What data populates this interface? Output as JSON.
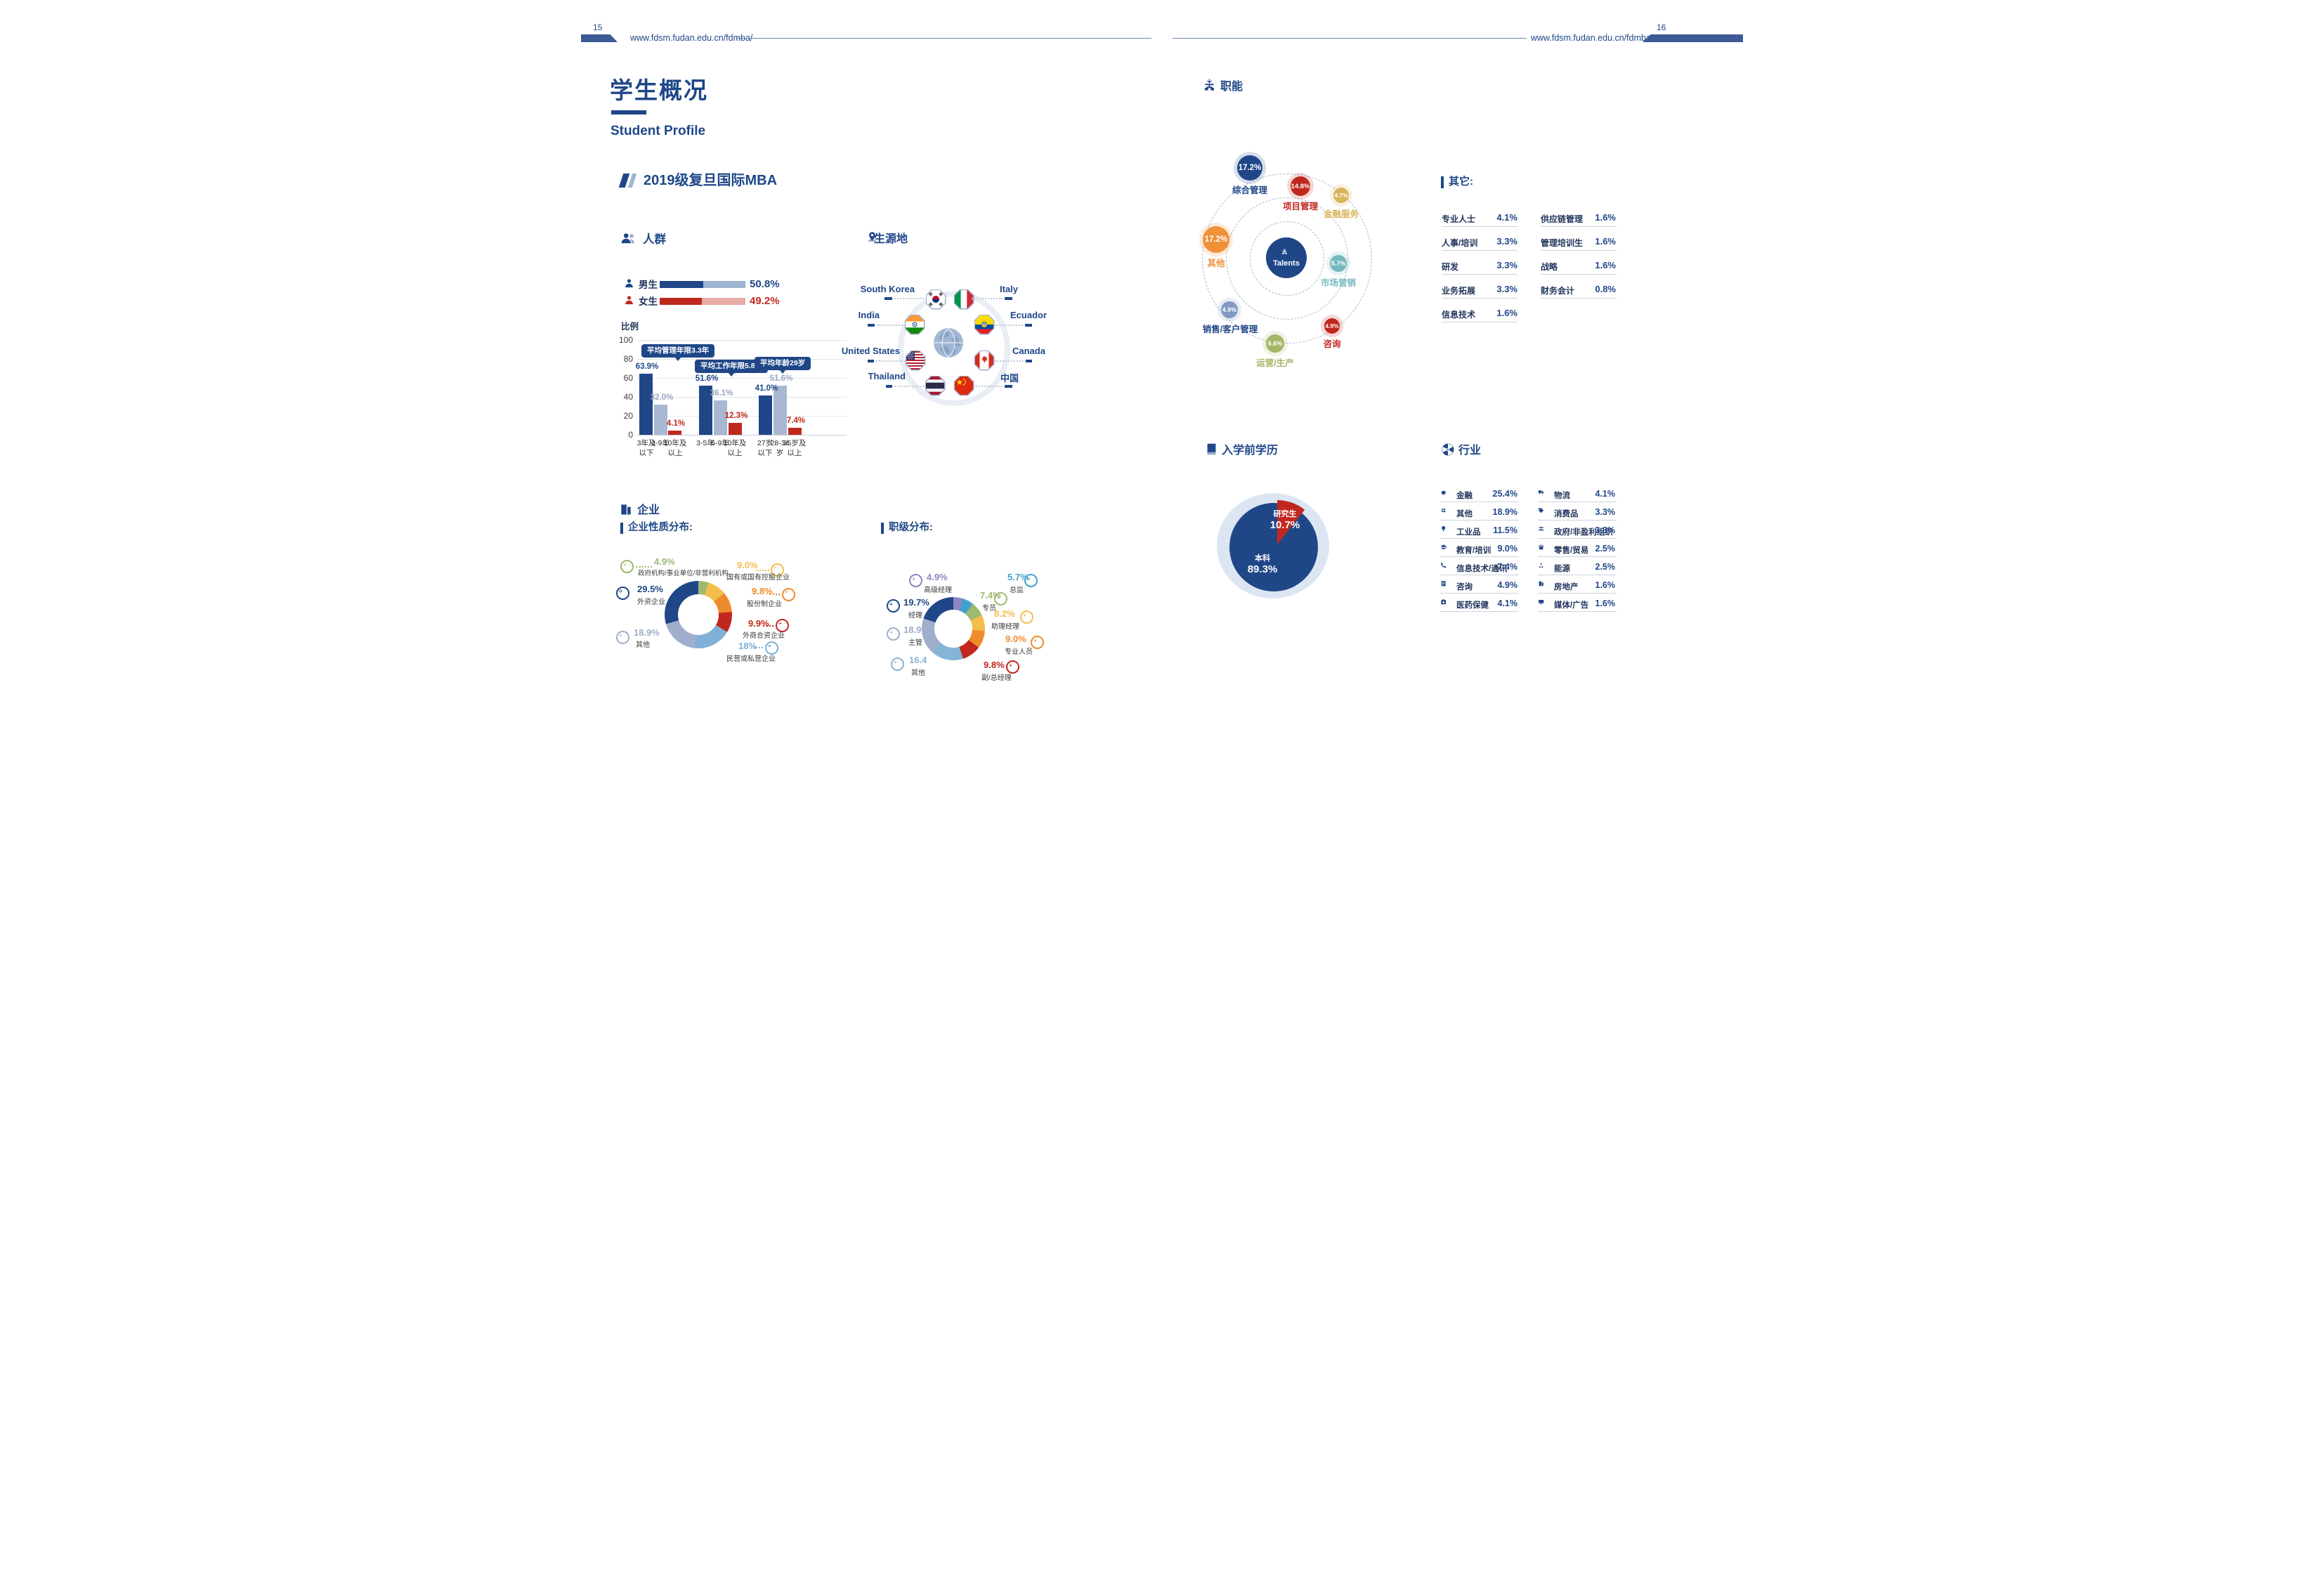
{
  "meta": {
    "left_page": "15",
    "right_page": "16",
    "url": "www.fdsm.fudan.edu.cn/fdmba/"
  },
  "palette": {
    "navy": "#1F4788",
    "red": "#C0281E",
    "gray_blue": "#9FAECB",
    "light_blue": "#7FB1D8"
  },
  "left_page": {
    "title": "学生概况",
    "subtitle": "Student Profile",
    "class_heading": "2019级复旦国际MBA",
    "people": {
      "title": "人群",
      "gender": [
        {
          "label": "男生",
          "display": "50.8%",
          "pct": 50.8,
          "color": "#1F4788",
          "track": "#9FB3D4"
        },
        {
          "label": "女生",
          "display": "49.2%",
          "pct": 49.2,
          "color": "#C0281E",
          "track": "#E8ACA7"
        }
      ],
      "axis_label": "比例",
      "ticks": [
        "100",
        "80",
        "60",
        "40",
        "20",
        "0"
      ],
      "groups": [
        {
          "annotation": "平均管理年限3.3年",
          "bars": [
            {
              "label": "3年及\n以下",
              "pct": 63.9,
              "display": "63.9%",
              "color": "#1F4788",
              "value_color": "#1F4788"
            },
            {
              "label": "4-9年",
              "pct": 32.0,
              "display": "32.0%",
              "color": "#A9B8D2",
              "value_color": "#9AA8C2"
            },
            {
              "label": "10年及\n以上",
              "pct": 4.1,
              "display": "4.1%",
              "color": "#C0281E",
              "value_color": "#C0281E"
            }
          ]
        },
        {
          "annotation": "平均工作年限5.8年",
          "bars": [
            {
              "label": "3-5年",
              "pct": 51.6,
              "display": "51.6%",
              "color": "#1F4788",
              "value_color": "#1F4788"
            },
            {
              "label": "6-9年",
              "pct": 36.1,
              "display": "36.1%",
              "color": "#A9B8D2",
              "value_color": "#9AA8C2"
            },
            {
              "label": "10年及\n以上",
              "pct": 12.3,
              "display": "12.3%",
              "color": "#C0281E",
              "value_color": "#C0281E"
            }
          ]
        },
        {
          "annotation": "平均年龄29岁",
          "bars": [
            {
              "label": "27岁\n以下",
              "pct": 41.0,
              "display": "41.0%",
              "color": "#1F4788",
              "value_color": "#1F4788"
            },
            {
              "label": "28-34\n岁",
              "pct": 51.6,
              "display": "51.6%",
              "color": "#A9B8D2",
              "value_color": "#9AA8C2"
            },
            {
              "label": "35岁及\n以上",
              "pct": 7.4,
              "display": "7.4%",
              "color": "#C0281E",
              "value_color": "#C0281E"
            }
          ]
        }
      ]
    },
    "origin": {
      "title": "生源地",
      "countries": [
        {
          "name": "South Korea"
        },
        {
          "name": "Italy"
        },
        {
          "name": "India"
        },
        {
          "name": "Ecuador"
        },
        {
          "name": "United States"
        },
        {
          "name": "Canada"
        },
        {
          "name": "Thailand"
        },
        {
          "name": "中国"
        }
      ]
    },
    "company": {
      "title": "企业",
      "nature": {
        "heading": "企业性质分布:",
        "slices": [
          {
            "pct": 4.9,
            "color": "#9CBA70"
          },
          {
            "pct": 9.0,
            "color": "#F3BE4B"
          },
          {
            "pct": 9.8,
            "color": "#EE8B2C"
          },
          {
            "pct": 9.9,
            "color": "#C0281E"
          },
          {
            "pct": 18.0,
            "color": "#7FB1D8"
          },
          {
            "pct": 18.9,
            "color": "#9FAECB"
          },
          {
            "pct": 29.5,
            "color": "#1F4788"
          }
        ],
        "labels": [
          {
            "value": "4.9%",
            "name": "政府机构/事业单位/非营利机构",
            "color": "#9CBA70"
          },
          {
            "value": "9.0%",
            "name": "国有或国有控股企业",
            "color": "#F3BE4B"
          },
          {
            "value": "9.8%",
            "name": "股份制企业",
            "color": "#EE8B2C"
          },
          {
            "value": "9.9%",
            "name": "外商合资企业",
            "color": "#C0281E"
          },
          {
            "value": "18%",
            "name": "民营或私营企业",
            "color": "#7FB1D8"
          },
          {
            "value": "18.9%",
            "name": "其他",
            "color": "#9FAECB"
          },
          {
            "value": "29.5%",
            "name": "外资企业",
            "color": "#1F4788"
          }
        ]
      },
      "rank": {
        "heading": "职级分布:",
        "slices": [
          {
            "pct": 4.9,
            "color": "#8F85C1"
          },
          {
            "pct": 5.7,
            "color": "#41A0CE"
          },
          {
            "pct": 7.4,
            "color": "#9CBA70"
          },
          {
            "pct": 8.2,
            "color": "#F3BE4B"
          },
          {
            "pct": 9.0,
            "color": "#EE8B2C"
          },
          {
            "pct": 9.8,
            "color": "#C0281E"
          },
          {
            "pct": 16.4,
            "color": "#85B4D9"
          },
          {
            "pct": 18.9,
            "color": "#9FAECB"
          },
          {
            "pct": 19.7,
            "color": "#1F4788"
          }
        ],
        "labels": [
          {
            "value": "4.9%",
            "name": "高级经理",
            "color": "#8F85C1"
          },
          {
            "value": "5.7%",
            "name": "总监",
            "color": "#41A0CE"
          },
          {
            "value": "7.4%",
            "name": "专员",
            "color": "#9CBA70"
          },
          {
            "value": "8.2%",
            "name": "助理经理",
            "color": "#F3BE4B"
          },
          {
            "value": "9.0%",
            "name": "专业人员",
            "color": "#EE8B2C"
          },
          {
            "value": "9.8%",
            "name": "副/总经理",
            "color": "#C0281E"
          },
          {
            "value": "16.4",
            "name": "其他",
            "color": "#85B4D9"
          },
          {
            "value": "18.9%",
            "name": "主管",
            "color": "#9FAECB"
          },
          {
            "value": "19.7%",
            "name": "经理",
            "color": "#1F4788"
          }
        ]
      }
    }
  },
  "right_page": {
    "functions": {
      "title": "职能",
      "center_label": "Talents",
      "bubbles": [
        {
          "value": "17.2%",
          "name": "综合管理",
          "color": "#1F4788",
          "label_color": "#1F4788"
        },
        {
          "value": "14.8%",
          "name": "项目管理",
          "color": "#C0281E",
          "label_color": "#C0281E"
        },
        {
          "value": "4.7%",
          "name": "金融服务",
          "color": "#D9B45C",
          "label_color": "#D9B45C"
        },
        {
          "value": "17.2%",
          "name": "其他",
          "color": "#F0913A",
          "label_color": "#F0913A"
        },
        {
          "value": "5.7%",
          "name": "市场营销",
          "color": "#74B9BD",
          "label_color": "#74B9BD"
        },
        {
          "value": "4.9%",
          "name": "销售/客户管理",
          "color": "#8199C4",
          "label_color": "#1F4788"
        },
        {
          "value": "6.6%",
          "name": "运营/生产",
          "color": "#A4B566",
          "label_color": "#A4B566"
        },
        {
          "value": "4.9%",
          "name": "咨询",
          "color": "#C0281E",
          "label_color": "#C0281E"
        }
      ]
    },
    "others": {
      "heading": "其它:",
      "left": [
        {
          "name": "专业人士",
          "value": "4.1%"
        },
        {
          "name": "人事/培训",
          "value": "3.3%"
        },
        {
          "name": "研发",
          "value": "3.3%"
        },
        {
          "name": "业务拓展",
          "value": "3.3%"
        },
        {
          "name": "信息技术",
          "value": "1.6%"
        }
      ],
      "right": [
        {
          "name": "供应链管理",
          "value": "1.6%"
        },
        {
          "name": "管理培训生",
          "value": "1.6%"
        },
        {
          "name": "战略",
          "value": "1.6%"
        },
        {
          "name": "财务会计",
          "value": "0.8%"
        }
      ]
    },
    "education": {
      "title": "入学前学历",
      "slices": [
        {
          "name": "研究生",
          "display": "10.7%",
          "pct": 10.7,
          "color": "#C0281E"
        },
        {
          "name": "本科",
          "display": "89.3%",
          "pct": 89.3,
          "color": "#1F4788"
        }
      ]
    },
    "industry": {
      "title": "行业",
      "left": [
        {
          "name": "金融",
          "value": "25.4%"
        },
        {
          "name": "其他",
          "value": "18.9%"
        },
        {
          "name": "工业品",
          "value": "11.5%"
        },
        {
          "name": "教育/培训",
          "value": "9.0%"
        },
        {
          "name": "信息技术/通讯",
          "value": "7.4%"
        },
        {
          "name": "咨询",
          "value": "4.9%"
        },
        {
          "name": "医药保健",
          "value": "4.1%"
        }
      ],
      "right": [
        {
          "name": "物流",
          "value": "4.1%"
        },
        {
          "name": "消费品",
          "value": "3.3%"
        },
        {
          "name": "政府/非盈利组织",
          "value": "3.3%"
        },
        {
          "name": "零售/贸易",
          "value": "2.5%"
        },
        {
          "name": "能源",
          "value": "2.5%"
        },
        {
          "name": "房地产",
          "value": "1.6%"
        },
        {
          "name": "媒体/广告",
          "value": "1.6%"
        }
      ]
    }
  },
  "chart_data": [
    {
      "type": "bar",
      "title": "人群",
      "ylabel": "比例",
      "ylim": [
        0,
        100
      ],
      "grid": true,
      "series": [
        {
          "annotation": "平均管理年限3.3年",
          "categories": [
            "3年及以下",
            "4-9年",
            "10年及以上"
          ],
          "values": [
            63.9,
            32.0,
            4.1
          ]
        },
        {
          "annotation": "平均工作年限5.8年",
          "categories": [
            "3-5年",
            "6-9年",
            "10年及以上"
          ],
          "values": [
            51.6,
            36.1,
            12.3
          ]
        },
        {
          "annotation": "平均年龄29岁",
          "categories": [
            "27岁以下",
            "28-34岁",
            "35岁及以上"
          ],
          "values": [
            41.0,
            51.6,
            7.4
          ]
        }
      ]
    },
    {
      "type": "bar",
      "title": "男女比例",
      "categories": [
        "男生",
        "女生"
      ],
      "values": [
        50.8,
        49.2
      ]
    },
    {
      "type": "pie",
      "title": "企业性质分布",
      "categories": [
        "政府机构/事业单位/非营利机构",
        "国有或国有控股企业",
        "股份制企业",
        "外商合资企业",
        "民营或私营企业",
        "其他",
        "外资企业"
      ],
      "values": [
        4.9,
        9.0,
        9.8,
        9.9,
        18.0,
        18.9,
        29.5
      ]
    },
    {
      "type": "pie",
      "title": "职级分布",
      "categories": [
        "高级经理",
        "总监",
        "专员",
        "助理经理",
        "专业人员",
        "副/总经理",
        "其他",
        "主管",
        "经理"
      ],
      "values": [
        4.9,
        5.7,
        7.4,
        8.2,
        9.0,
        9.8,
        16.4,
        18.9,
        19.7
      ]
    },
    {
      "type": "scatter",
      "title": "职能",
      "categories": [
        "综合管理",
        "项目管理",
        "金融服务",
        "其他",
        "市场营销",
        "销售/客户管理",
        "运营/生产",
        "咨询"
      ],
      "values": [
        17.2,
        14.8,
        4.7,
        17.2,
        5.7,
        4.9,
        6.6,
        4.9
      ]
    },
    {
      "type": "pie",
      "title": "入学前学历",
      "categories": [
        "研究生",
        "本科"
      ],
      "values": [
        10.7,
        89.3
      ]
    },
    {
      "type": "table",
      "title": "其它",
      "categories": [
        "专业人士",
        "人事/培训",
        "研发",
        "业务拓展",
        "信息技术",
        "供应链管理",
        "管理培训生",
        "战略",
        "财务会计"
      ],
      "values": [
        4.1,
        3.3,
        3.3,
        3.3,
        1.6,
        1.6,
        1.6,
        1.6,
        0.8
      ]
    },
    {
      "type": "table",
      "title": "行业",
      "categories": [
        "金融",
        "其他",
        "工业品",
        "教育/培训",
        "信息技术/通讯",
        "咨询",
        "医药保健",
        "物流",
        "消费品",
        "政府/非盈利组织",
        "零售/贸易",
        "能源",
        "房地产",
        "媒体/广告"
      ],
      "values": [
        25.4,
        18.9,
        11.5,
        9.0,
        7.4,
        4.9,
        4.1,
        4.1,
        3.3,
        3.3,
        2.5,
        2.5,
        1.6,
        1.6
      ]
    }
  ]
}
